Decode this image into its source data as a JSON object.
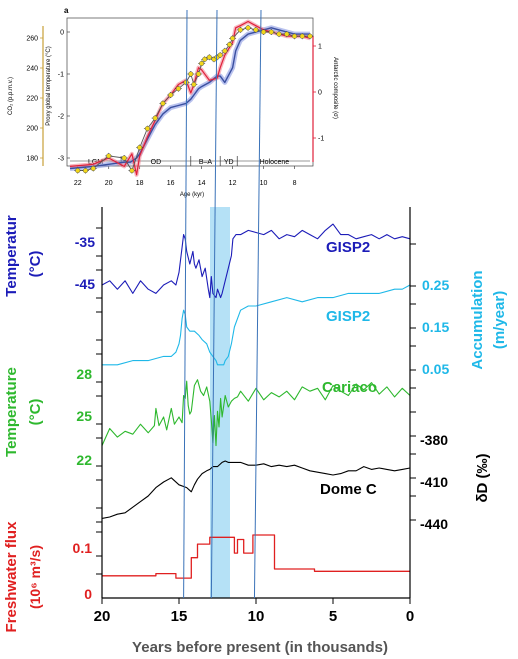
{
  "inset": {
    "panel_label": "a",
    "y_left_outer_label": "CO₂ (p.p.m.v.)",
    "y_left_outer_ticks": [
      "260",
      "240",
      "220",
      "200",
      "180"
    ],
    "y_left_inner_label": "Proxy global temperature (°C)",
    "y_left_inner_ticks": [
      "0",
      "-1",
      "-2",
      "-3"
    ],
    "y_right_label": "Antarctic composite (σ)",
    "y_right_ticks": [
      "1",
      "0",
      "-1"
    ],
    "x_label": "Age (kyr)",
    "x_ticks": [
      "22",
      "20",
      "18",
      "16",
      "14",
      "12",
      "10",
      "8"
    ],
    "periods": [
      "LGM",
      "OD",
      "B–A",
      "YD",
      "Holocene"
    ],
    "colors": {
      "blue": "#3a4fa0",
      "red": "#e0203a",
      "yellow": "#f2d71a",
      "axis_orange": "#c8a038"
    }
  },
  "main": {
    "x_label": "Years before present (in thousands)",
    "x_ticks": [
      "20",
      "15",
      "10",
      "5",
      "0"
    ],
    "highlight_band_color": "#a8dcf5",
    "panels": {
      "gisp2_temp": {
        "series_label": "GISP2",
        "axis_title_line1": "Temperatur",
        "axis_title_line2": "(°C)",
        "ticks": [
          "-35",
          "-45"
        ],
        "color": "#1c1cb8"
      },
      "gisp2_accum": {
        "series_label": "GISP2",
        "axis_title_line1": "Accumulation",
        "axis_title_line2": "(m/year)",
        "ticks": [
          "0.25",
          "0.15",
          "0.05"
        ],
        "color": "#1fb8e8"
      },
      "cariaco": {
        "series_label": "Cariaco",
        "axis_title_line1": "Temperature",
        "axis_title_line2": "(°C)",
        "ticks": [
          "28",
          "25",
          "22"
        ],
        "color": "#2eb82e"
      },
      "domec": {
        "series_label": "Dome C",
        "axis_title": "δD (‰)",
        "ticks": [
          "-380",
          "-410",
          "-440"
        ],
        "color": "#000000"
      },
      "flux": {
        "axis_title_line1": "Freshwater flux",
        "axis_title_line2": "(10⁶ m³/s)",
        "ticks": [
          "0.1",
          "0"
        ],
        "color": "#e02020"
      }
    }
  },
  "chart_data": [
    {
      "type": "line",
      "xlabel": "Age (kyr)",
      "xlim": [
        23,
        6.5
      ],
      "series": [
        {
          "x": [
            22.5,
            21,
            20,
            19,
            18.6,
            18.2,
            18,
            17.5,
            17,
            16.5,
            16,
            15.5,
            15,
            14.7,
            14.5,
            14.2,
            14,
            13.5,
            13,
            12.8,
            12.5,
            12,
            11.8,
            11.5,
            11,
            10.5,
            10,
            9.5,
            9,
            8.5,
            8,
            7.5,
            7
          ],
          "values": [
            -3.25,
            -3.2,
            -3.15,
            -3.1,
            -3.1,
            -3.0,
            -2.9,
            -2.55,
            -2.2,
            -1.95,
            -1.8,
            -1.75,
            -1.7,
            -1.6,
            -1.5,
            -1.35,
            -1.3,
            -1.2,
            -1.05,
            -1.05,
            -1.2,
            -0.85,
            -0.45,
            -0.2,
            -0.05,
            0.0,
            0.05,
            0.1,
            0.05,
            0.0,
            -0.05,
            -0.05,
            -0.05
          ]
        },
        {
          "x": [
            22.5,
            21,
            20,
            19,
            18.5,
            18.2,
            18,
            17.5,
            17,
            16.5,
            16,
            15.5,
            15,
            14.7,
            14.5,
            14.2,
            14,
            13.5,
            13,
            12.8,
            12.5,
            12,
            11.8,
            11.5,
            11,
            10.5,
            10,
            9.5,
            9,
            8.5,
            8,
            7.5,
            7
          ],
          "values": [
            -3.2,
            -3.15,
            -3.0,
            -3.2,
            -2.9,
            -3.4,
            -2.95,
            -2.5,
            -2.1,
            -1.7,
            -1.5,
            -1.25,
            -1.15,
            -1.45,
            -1.25,
            -0.85,
            -0.9,
            -1.15,
            -1.1,
            -0.85,
            -0.55,
            -0.25,
            0.1,
            0.15,
            0.25,
            0.15,
            0.05,
            0.0,
            -0.05,
            -0.1,
            -0.1,
            -0.1,
            -0.15
          ]
        },
        {
          "x": [
            22,
            21.5,
            21,
            20,
            19,
            18.5,
            18,
            17.5,
            17,
            16.5,
            16,
            15.5,
            15,
            14.7,
            14.5,
            14.2,
            14,
            13.8,
            13.5,
            13.2,
            13,
            12.8,
            12.5,
            12.2,
            12,
            11.5,
            11,
            10.5,
            10,
            9.5,
            9,
            8.5,
            8,
            7.5,
            7
          ],
          "values": [
            -3.3,
            -3.3,
            -3.25,
            -2.95,
            -3.0,
            -3.3,
            -2.75,
            -2.3,
            -2.05,
            -1.7,
            -1.5,
            -1.35,
            -1.2,
            -1.0,
            -1.25,
            -1.0,
            -0.75,
            -0.65,
            -0.6,
            -0.65,
            -0.6,
            -0.55,
            -0.45,
            -0.3,
            -0.15,
            0.05,
            0.1,
            0.05,
            0.0,
            0.0,
            -0.05,
            -0.05,
            -0.1,
            -0.1,
            -0.1
          ]
        }
      ]
    },
    {
      "type": "line",
      "xlabel": "Years before present (in thousands)",
      "xlim": [
        20,
        0
      ],
      "series": [
        {
          "x": [
            20,
            19.5,
            19,
            18.5,
            18,
            17.5,
            17,
            16.5,
            16,
            15.5,
            15.2,
            15,
            14.8,
            14.7,
            14.6,
            14.5,
            14.3,
            14.1,
            14,
            13.9,
            13.7,
            13.5,
            13.3,
            13.1,
            13,
            12.9,
            12.8,
            12.6,
            12.5,
            12.3,
            12.2,
            12,
            11.8,
            11.6,
            11.5,
            11.3,
            11,
            10.5,
            10,
            9.5,
            9,
            8.5,
            8,
            7.5,
            7,
            6.5,
            6,
            5.5,
            5,
            4.5,
            4,
            3.5,
            3,
            2.5,
            2,
            1.5,
            1,
            0.5,
            0
          ],
          "values": [
            -45,
            -44,
            -46,
            -44,
            -47,
            -44,
            -46,
            -47,
            -45,
            -44,
            -45,
            -42,
            -36,
            -33,
            -34,
            -37,
            -40,
            -37,
            -40,
            -41,
            -39,
            -43,
            -41,
            -46,
            -48,
            -43,
            -47,
            -48,
            -46,
            -48,
            -47,
            -44,
            -41,
            -38,
            -34,
            -33,
            -33,
            -32,
            -32.5,
            -33,
            -32,
            -34,
            -33,
            -33.5,
            -32,
            -33,
            -34,
            -32,
            -30.5,
            -33,
            -33,
            -34,
            -33.5,
            -33,
            -34,
            -33,
            -34,
            -33.5,
            -34
          ]
        },
        {
          "x": [
            20,
            19,
            18,
            17,
            16,
            15.5,
            15.2,
            15,
            14.9,
            14.8,
            14.7,
            14.6,
            14.5,
            14.3,
            14,
            13.7,
            13.5,
            13.2,
            13,
            12.8,
            12.6,
            12.5,
            12.3,
            12.1,
            12,
            11.8,
            11.6,
            11.4,
            11.2,
            11,
            10.5,
            10,
            9,
            8,
            7,
            6,
            5,
            4,
            3,
            2,
            1,
            0.5,
            0
          ],
          "values": [
            0.06,
            0.06,
            0.07,
            0.07,
            0.08,
            0.08,
            0.09,
            0.11,
            0.13,
            0.17,
            0.19,
            0.18,
            0.15,
            0.14,
            0.14,
            0.13,
            0.12,
            0.11,
            0.09,
            0.08,
            0.07,
            0.06,
            0.06,
            0.06,
            0.07,
            0.08,
            0.11,
            0.15,
            0.17,
            0.19,
            0.2,
            0.2,
            0.21,
            0.22,
            0.21,
            0.22,
            0.22,
            0.23,
            0.23,
            0.23,
            0.24,
            0.24,
            0.25
          ]
        },
        {
          "x": [
            20,
            19.5,
            19,
            18.5,
            18,
            17.5,
            17,
            16.6,
            16.5,
            16.3,
            16,
            15.8,
            15.5,
            15.3,
            15,
            14.8,
            14.7,
            14.6,
            14.5,
            14.4,
            14.3,
            14.2,
            14,
            13.8,
            13.6,
            13.4,
            13.2,
            13,
            12.9,
            12.8,
            12.7,
            12.6,
            12.5,
            12.4,
            12.3,
            12.2,
            12,
            11.8,
            11.6,
            11.4,
            11.2,
            11,
            10.5,
            10,
            9.5,
            9,
            8.5,
            8,
            7.5,
            7,
            6.5,
            6,
            5.5,
            5,
            4.5,
            4,
            3.5,
            3,
            2.5,
            2,
            1.5,
            1,
            0.5,
            0
          ],
          "values": [
            23.0,
            24.2,
            23.6,
            24.0,
            23.8,
            24.5,
            23.9,
            24.4,
            25.6,
            24.4,
            25.0,
            24.1,
            25.6,
            24.5,
            25.0,
            24.6,
            26.5,
            26.3,
            27.5,
            25.8,
            25.2,
            25.4,
            27.2,
            27.6,
            26.8,
            26.5,
            27.1,
            26.1,
            24.8,
            23.2,
            25.1,
            23.0,
            25.4,
            24.3,
            26.3,
            25.0,
            26.5,
            25.7,
            26.1,
            26.3,
            26.4,
            26.8,
            26.1,
            27.0,
            26.2,
            26.7,
            26.4,
            26.8,
            26.2,
            27.1,
            26.8,
            27.0,
            26.2,
            27.2,
            26.8,
            26.5,
            27.3,
            26.9,
            27.4,
            26.6,
            27.1,
            26.4,
            27.0,
            26.5
          ]
        },
        {
          "x": [
            20,
            19.5,
            19,
            18.5,
            18,
            17.5,
            17,
            16.5,
            16,
            15.5,
            15,
            14.5,
            14.2,
            14,
            13.8,
            13.5,
            13.2,
            13,
            12.8,
            12.5,
            12.2,
            12,
            11.8,
            11.5,
            11.2,
            11,
            10.5,
            10,
            9.5,
            9,
            8.5,
            8,
            7.5,
            7,
            6.5,
            6,
            5.5,
            5,
            4.5,
            4,
            3.5,
            3,
            2.5,
            2,
            1.5,
            1,
            0.5,
            0
          ],
          "values": [
            -436,
            -435,
            -433,
            -432,
            -428,
            -424,
            -420,
            -414,
            -410,
            -407,
            -412,
            -414,
            -417,
            -412,
            -408,
            -404,
            -402,
            -401,
            -399,
            -399,
            -396,
            -395,
            -396,
            -396,
            -396,
            -396,
            -398,
            -398,
            -397,
            -399,
            -398,
            -399,
            -398,
            -400,
            -402,
            -403,
            -404,
            -405,
            -404,
            -402,
            -402,
            -399,
            -401,
            -400,
            -401,
            -402,
            -401,
            -400
          ]
        },
        {
          "x": [
            20,
            16.5,
            16.5,
            15.2,
            15.2,
            14.2,
            14.2,
            13.8,
            13.8,
            13.0,
            13.0,
            11.4,
            11.4,
            11.2,
            11.2,
            10.8,
            10.8,
            10.2,
            10.2,
            8.8,
            8.8,
            6.2,
            6.2,
            0
          ],
          "values": [
            0.04,
            0.04,
            0.045,
            0.045,
            0.035,
            0.035,
            0.08,
            0.08,
            0.11,
            0.11,
            0.125,
            0.125,
            0.09,
            0.09,
            0.12,
            0.12,
            0.09,
            0.09,
            0.13,
            0.13,
            0.055,
            0.055,
            0.05,
            0.05
          ]
        }
      ]
    }
  ]
}
